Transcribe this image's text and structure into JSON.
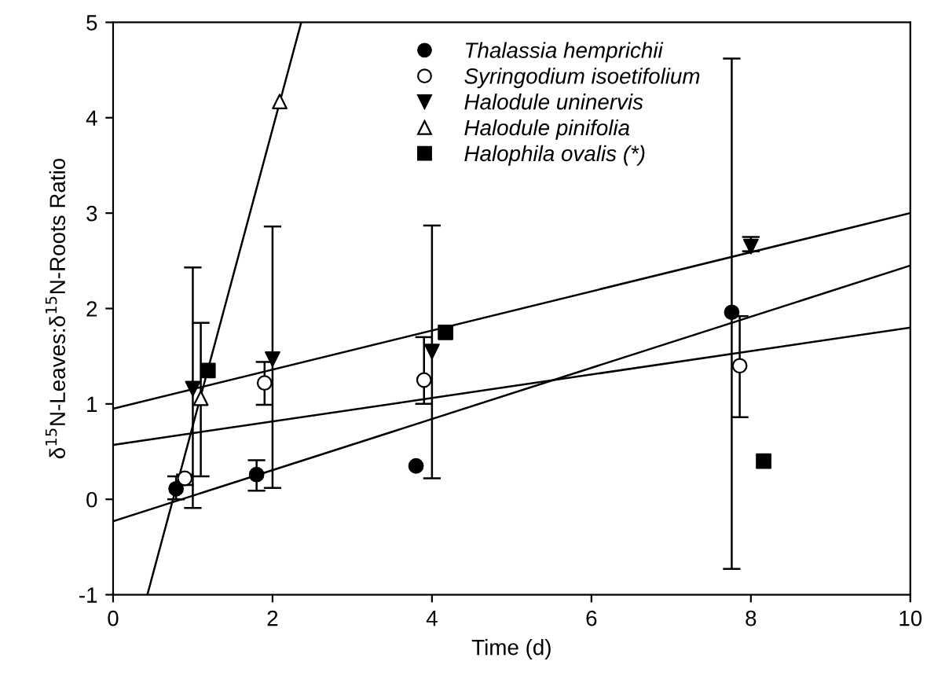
{
  "chart_data": {
    "type": "scatter",
    "xlabel": "Time (d)",
    "ylabel": "δ$^{15}$N-Leaves:δ$^{15}$N-Roots Ratio",
    "xlim": [
      0,
      10
    ],
    "ylim": [
      -1,
      5
    ],
    "xticks": [
      0,
      2,
      4,
      6,
      8,
      10
    ],
    "yticks": [
      {
        "value": -1,
        "label": "-1"
      },
      0,
      1,
      2,
      3,
      4,
      5
    ],
    "grid": false,
    "legend": "top",
    "series": [
      {
        "name": "Thalassia hemprichii",
        "color": "#000000",
        "marker": "circle",
        "x": [
          0.79,
          1.8,
          3.8,
          7.76
        ],
        "values": [
          0.11,
          0.26,
          0.35,
          1.96
        ],
        "errors": [
          [
            0.0,
            0.24
          ],
          [
            0.09,
            0.41
          ],
          null,
          [
            -0.73,
            4.62
          ]
        ]
      },
      {
        "name": "Syringodium isoetifolium",
        "color": "#ffffff",
        "marker": "circle",
        "x": [
          0.9,
          1.9,
          3.9,
          7.86
        ],
        "values": [
          0.22,
          1.22,
          1.25,
          1.4
        ],
        "errors": [
          [
            0.15,
            0.26
          ],
          [
            0.99,
            1.44
          ],
          [
            1.0,
            1.7
          ],
          [
            0.86,
            1.92
          ]
        ]
      },
      {
        "name": "Halodule uninervis",
        "color": "#000000",
        "marker": "triangle_down",
        "x": [
          1.0,
          2.0,
          4.0,
          8.0
        ],
        "values": [
          1.16,
          1.47,
          1.55,
          2.65
        ],
        "errors": [
          [
            -0.09,
            2.43
          ],
          [
            0.12,
            2.86
          ],
          [
            0.22,
            2.87
          ],
          [
            2.6,
            2.75
          ]
        ]
      },
      {
        "name": "Halodule pinifolia",
        "color": "#ffffff",
        "marker": "triangle",
        "x": [
          1.1,
          2.09
        ],
        "values": [
          1.06,
          4.17
        ],
        "errors": [
          [
            0.24,
            1.85
          ],
          null
        ]
      },
      {
        "name": "Halophila ovalis (*)",
        "color": "#000000",
        "marker": "square",
        "x": [
          1.19,
          4.17,
          8.16
        ],
        "values": [
          1.35,
          1.75,
          0.4
        ],
        "errors": [
          null,
          null,
          null
        ]
      },
      {
        "type": "line",
        "color": "#000000",
        "x": [
          0,
          10
        ],
        "values": [
          0.95,
          3.0
        ]
      },
      {
        "type": "line",
        "color": "#000000",
        "x": [
          0,
          10
        ],
        "values": [
          0.57,
          1.8
        ]
      },
      {
        "type": "line",
        "color": "#000000",
        "x": [
          0,
          10
        ],
        "values": [
          -0.23,
          2.45
        ]
      },
      {
        "type": "line",
        "color": "#000000",
        "x": [
          0.43,
          2.36
        ],
        "values": [
          -1,
          5
        ]
      }
    ]
  }
}
